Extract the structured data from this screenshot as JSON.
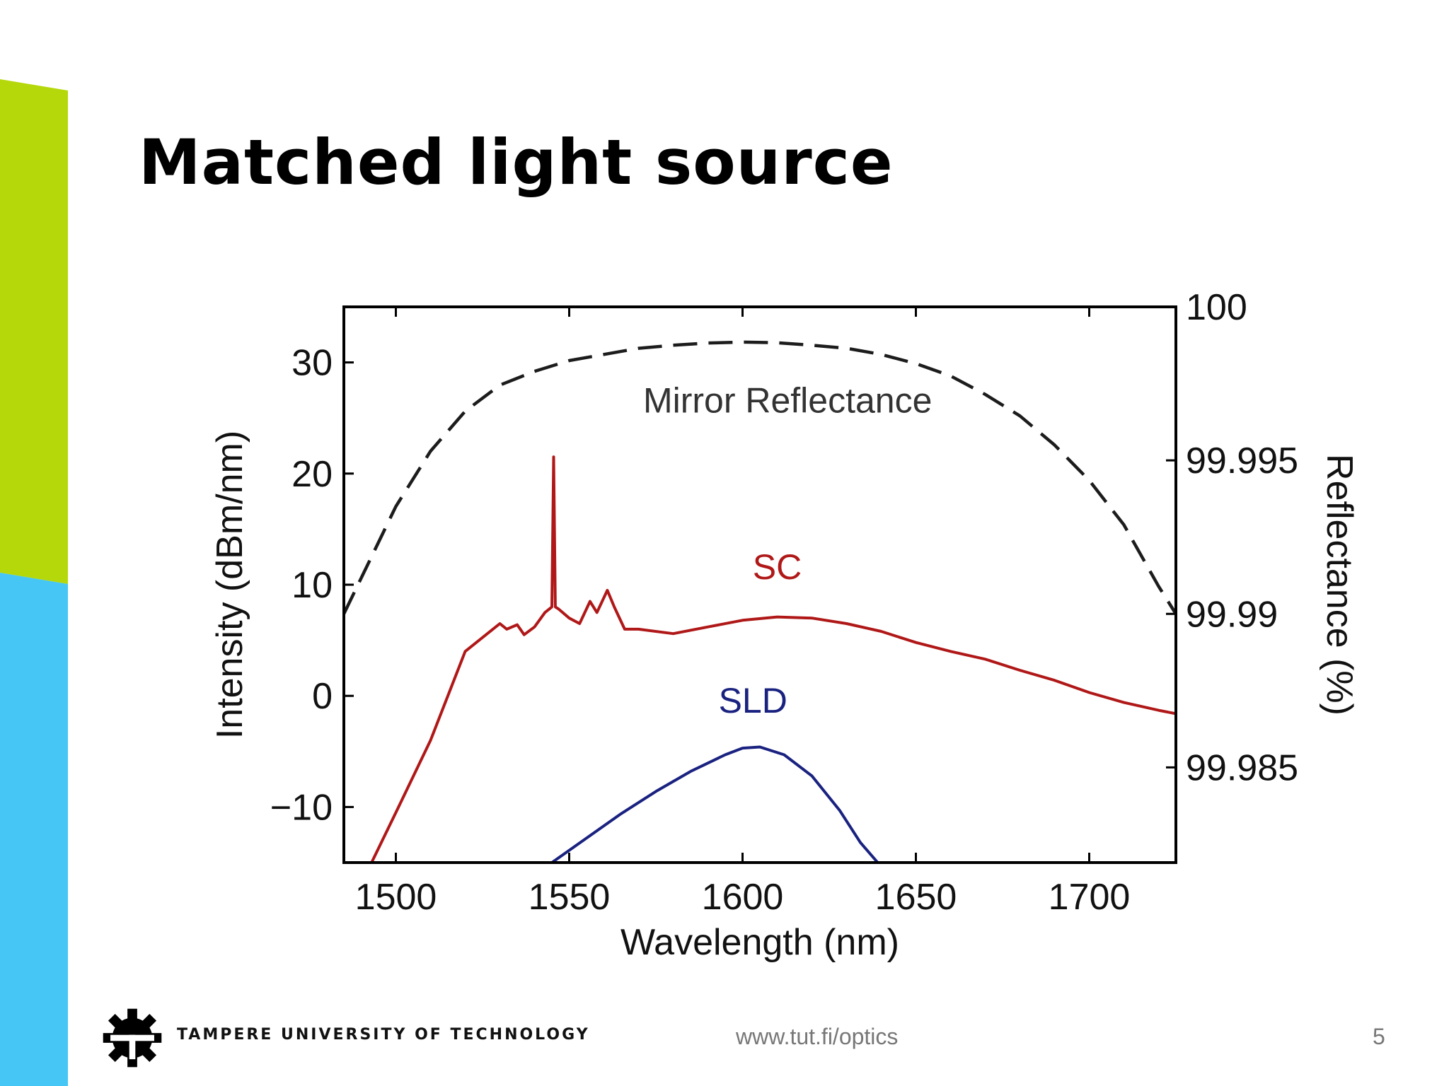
{
  "slide": {
    "title": "Matched light source",
    "footer_org": "TAMPERE UNIVERSITY OF TECHNOLOGY",
    "footer_url": "www.tut.fi/optics",
    "page_number": "5",
    "colors": {
      "accent_green": "#b5d80a",
      "accent_blue": "#46c6f4"
    }
  },
  "chart_data": {
    "type": "line",
    "xlabel": "Wavelength (nm)",
    "ylabel": "Intensity (dBm/nm)",
    "y2label": "Reflectance (%)",
    "xlim": [
      1485,
      1725
    ],
    "ylim": [
      -15,
      35
    ],
    "y2lim": [
      99.9819,
      100
    ],
    "xticks": [
      1500,
      1550,
      1600,
      1650,
      1700
    ],
    "yticks": [
      -10,
      0,
      10,
      20,
      30
    ],
    "y2ticks": [
      99.985,
      99.99,
      99.995,
      100
    ],
    "xtick_labels": [
      "1500",
      "1550",
      "1600",
      "1650",
      "1700"
    ],
    "ytick_labels": [
      "−10",
      "0",
      "10",
      "20",
      "30"
    ],
    "y2tick_labels": [
      "99.985",
      "99.99",
      "99.995",
      "100"
    ],
    "grid": false,
    "series": [
      {
        "name": "SC",
        "axis": "left",
        "color": "#b01818",
        "style": "solid",
        "x": [
          1493,
          1500,
          1510,
          1520,
          1530,
          1532,
          1535,
          1537,
          1540,
          1543,
          1545,
          1545.5,
          1546,
          1547,
          1550,
          1553,
          1556,
          1558,
          1561,
          1563,
          1566,
          1570,
          1580,
          1590,
          1600,
          1610,
          1620,
          1630,
          1640,
          1650,
          1660,
          1670,
          1680,
          1690,
          1700,
          1710,
          1720,
          1725
        ],
        "values": [
          -15,
          -10.5,
          -4,
          4,
          6.5,
          6,
          6.4,
          5.5,
          6.2,
          7.5,
          8,
          21.5,
          8,
          7.8,
          7,
          6.5,
          8.5,
          7.5,
          9.5,
          8,
          6,
          6,
          5.6,
          6.2,
          6.8,
          7.1,
          7,
          6.5,
          5.8,
          4.8,
          4,
          3.3,
          2.3,
          1.4,
          0.3,
          -0.6,
          -1.3,
          -1.6
        ]
      },
      {
        "name": "SLD",
        "axis": "left",
        "color": "#1a2280",
        "style": "solid",
        "x": [
          1545,
          1555,
          1565,
          1575,
          1585,
          1595,
          1600,
          1605,
          1612,
          1620,
          1628,
          1634,
          1639
        ],
        "values": [
          -15,
          -12.8,
          -10.6,
          -8.6,
          -6.8,
          -5.3,
          -4.7,
          -4.6,
          -5.3,
          -7.2,
          -10.3,
          -13.2,
          -15
        ]
      },
      {
        "name": "Mirror Reflectance",
        "axis": "right",
        "color": "#1c1c1c",
        "style": "dashed",
        "x": [
          1485,
          1500,
          1510,
          1520,
          1530,
          1540,
          1550,
          1560,
          1570,
          1580,
          1590,
          1600,
          1610,
          1620,
          1630,
          1640,
          1650,
          1660,
          1670,
          1680,
          1690,
          1700,
          1710,
          1720,
          1725
        ],
        "values": [
          99.99,
          99.9935,
          99.9953,
          99.9966,
          99.99745,
          99.9979,
          99.99825,
          99.99845,
          99.99865,
          99.99875,
          99.99882,
          99.99885,
          99.99883,
          99.99875,
          99.99865,
          99.99845,
          99.99815,
          99.99775,
          99.99715,
          99.99645,
          99.9955,
          99.99435,
          99.9929,
          99.9909,
          99.99
        ]
      }
    ],
    "annotations": [
      {
        "text": "Mirror Reflectance",
        "x": 1613,
        "y": 25.5,
        "color": "#333333"
      },
      {
        "text": "SC",
        "x": 1610,
        "y": 10.5,
        "color": "#b01818"
      },
      {
        "text": "SLD",
        "x": 1603,
        "y": -1.5,
        "color": "#1a2280"
      }
    ]
  }
}
